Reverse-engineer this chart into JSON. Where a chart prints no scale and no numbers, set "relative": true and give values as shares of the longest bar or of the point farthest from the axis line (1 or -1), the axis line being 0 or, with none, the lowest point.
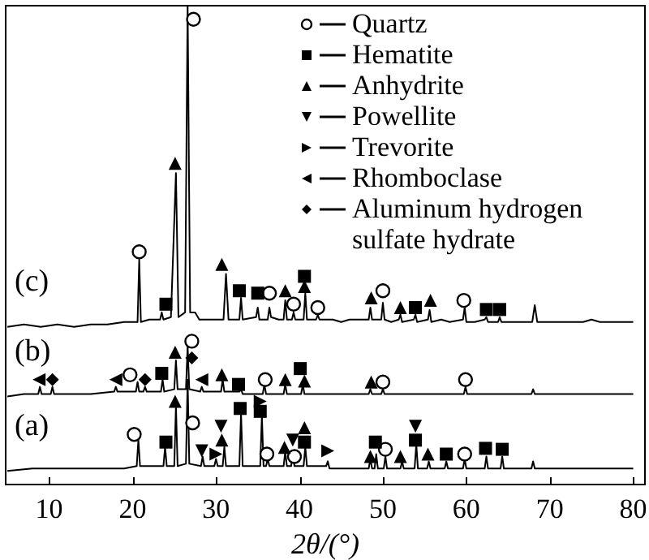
{
  "chart_data": {
    "type": "line",
    "relative": true,
    "xlabel": "2θ/(°)",
    "xlim": [
      4.7,
      81.5
    ],
    "xticks": [
      10,
      20,
      30,
      40,
      50,
      60,
      70,
      80
    ],
    "legend": "top right",
    "line_style": "solid",
    "annotations": [
      "(c)",
      "(b)",
      "(a)"
    ],
    "series": [
      {
        "color": "#000000",
        "x": [
          5,
          7,
          9,
          11,
          13,
          15,
          17,
          19,
          20.6,
          20.8,
          21,
          22,
          23.3,
          23.5,
          23.7,
          24.6,
          25.2,
          25.5,
          26.3,
          26.6,
          26.9,
          27.5,
          28,
          29,
          30.9,
          31.2,
          31.5,
          32.8,
          33,
          33.2,
          34.8,
          35,
          35.2,
          36.2,
          36.4,
          36.6,
          37.5,
          38.1,
          38.3,
          38.5,
          39.1,
          39.3,
          39.5,
          40.5,
          40.7,
          40.9,
          42,
          42.2,
          42.4,
          44,
          45,
          46,
          48.3,
          48.5,
          48.7,
          49.8,
          50,
          50.2,
          51,
          51.9,
          52.1,
          52.3,
          53.7,
          53.9,
          54.1,
          55.4,
          55.6,
          55.8,
          57,
          58,
          59.6,
          59.8,
          60,
          61,
          62.2,
          62.4,
          62.6,
          63.8,
          64,
          64.2,
          66,
          67.9,
          68.2,
          68.5,
          70,
          72,
          74,
          75,
          76,
          78,
          80
        ],
        "values": [
          0.33,
          0.335,
          0.33,
          0.335,
          0.33,
          0.335,
          0.335,
          0.34,
          0.34,
          0.47,
          0.34,
          0.345,
          0.345,
          0.36,
          0.345,
          0.35,
          0.65,
          0.35,
          0.36,
          1.0,
          0.36,
          0.36,
          0.345,
          0.345,
          0.345,
          0.44,
          0.345,
          0.345,
          0.39,
          0.345,
          0.35,
          0.37,
          0.345,
          0.345,
          0.37,
          0.35,
          0.345,
          0.345,
          0.385,
          0.345,
          0.345,
          0.36,
          0.345,
          0.345,
          0.4,
          0.345,
          0.345,
          0.355,
          0.345,
          0.345,
          0.34,
          0.345,
          0.345,
          0.37,
          0.345,
          0.345,
          0.38,
          0.345,
          0.34,
          0.345,
          0.355,
          0.34,
          0.345,
          0.355,
          0.34,
          0.345,
          0.365,
          0.34,
          0.345,
          0.34,
          0.345,
          0.37,
          0.34,
          0.34,
          0.345,
          0.35,
          0.34,
          0.34,
          0.35,
          0.34,
          0.34,
          0.34,
          0.375,
          0.34,
          0.34,
          0.34,
          0.34,
          0.345,
          0.34,
          0.34,
          0.34
        ]
      },
      {
        "color": "#000000",
        "x": [
          5,
          7,
          8.7,
          8.9,
          9.1,
          10.2,
          10.4,
          10.6,
          13,
          15,
          17.8,
          18,
          18.2,
          20.4,
          20.6,
          20.8,
          21.3,
          21.5,
          21.7,
          23.4,
          23.6,
          23.8,
          25,
          25.2,
          25.4,
          26.4,
          26.6,
          26.8,
          28.1,
          28.3,
          28.5,
          30.6,
          30.8,
          31,
          32.8,
          33,
          33.2,
          35.6,
          35.8,
          36,
          38.1,
          38.3,
          38.5,
          40.2,
          40.4,
          40.6,
          44,
          48.3,
          48.5,
          48.7,
          49.8,
          50,
          50.2,
          55,
          59.7,
          59.9,
          60.1,
          65,
          67.8,
          68,
          68.2,
          72,
          76,
          80
        ],
        "values": [
          0.185,
          0.19,
          0.19,
          0.205,
          0.19,
          0.19,
          0.205,
          0.19,
          0.19,
          0.19,
          0.195,
          0.205,
          0.195,
          0.195,
          0.215,
          0.195,
          0.195,
          0.205,
          0.195,
          0.195,
          0.22,
          0.195,
          0.2,
          0.26,
          0.2,
          0.2,
          0.29,
          0.2,
          0.195,
          0.205,
          0.195,
          0.195,
          0.22,
          0.195,
          0.195,
          0.2,
          0.19,
          0.19,
          0.21,
          0.19,
          0.19,
          0.21,
          0.19,
          0.19,
          0.21,
          0.19,
          0.19,
          0.19,
          0.2,
          0.19,
          0.19,
          0.2,
          0.19,
          0.19,
          0.19,
          0.205,
          0.19,
          0.19,
          0.19,
          0.2,
          0.19,
          0.19,
          0.19,
          0.19
        ]
      },
      {
        "color": "#000000",
        "x": [
          5,
          8,
          11,
          14,
          17,
          19,
          20.5,
          20.7,
          20.9,
          22,
          23.7,
          23.9,
          24.1,
          25,
          25.2,
          25.4,
          26.4,
          26.6,
          26.8,
          28.2,
          28.4,
          28.6,
          29.8,
          30,
          30.2,
          30.8,
          31,
          31.2,
          32.8,
          33,
          33.2,
          35.3,
          35.5,
          35.7,
          36,
          36.2,
          36.4,
          38.1,
          38.3,
          38.5,
          39,
          39.2,
          39.4,
          40.5,
          40.7,
          40.9,
          43.2,
          43.4,
          43.6,
          46,
          48.3,
          48.5,
          48.7,
          49,
          49.2,
          49.4,
          50.1,
          50.3,
          50.5,
          52.1,
          52.3,
          52.5,
          53.8,
          54,
          54.2,
          55.3,
          55.5,
          55.7,
          57.4,
          57.6,
          57.8,
          59.6,
          59.8,
          60,
          62.2,
          62.4,
          62.6,
          64.1,
          64.3,
          64.5,
          66,
          67.8,
          68,
          68.2,
          72,
          76,
          80
        ],
        "values": [
          0.03,
          0.035,
          0.035,
          0.035,
          0.035,
          0.035,
          0.04,
          0.095,
          0.04,
          0.04,
          0.04,
          0.08,
          0.04,
          0.04,
          0.165,
          0.04,
          0.045,
          0.22,
          0.045,
          0.04,
          0.06,
          0.04,
          0.04,
          0.055,
          0.04,
          0.04,
          0.08,
          0.04,
          0.04,
          0.15,
          0.04,
          0.04,
          0.145,
          0.04,
          0.04,
          0.055,
          0.04,
          0.04,
          0.07,
          0.04,
          0.04,
          0.065,
          0.04,
          0.04,
          0.08,
          0.04,
          0.04,
          0.05,
          0.035,
          0.035,
          0.035,
          0.055,
          0.035,
          0.035,
          0.065,
          0.035,
          0.035,
          0.06,
          0.035,
          0.035,
          0.05,
          0.035,
          0.035,
          0.085,
          0.035,
          0.035,
          0.05,
          0.035,
          0.035,
          0.05,
          0.035,
          0.035,
          0.055,
          0.035,
          0.035,
          0.06,
          0.035,
          0.035,
          0.06,
          0.035,
          0.035,
          0.035,
          0.05,
          0.035,
          0.035,
          0.035,
          0.035
        ]
      },
      {
        "type": "scatter",
        "name": "Quartz",
        "marker": "circle",
        "color": "#000000",
        "x": [
          20.8,
          27.3,
          36.4,
          39.3,
          42.2,
          50.0,
          59.7,
          19.7,
          27.1,
          35.9,
          50.0,
          59.9,
          20.2,
          27.2,
          36.1,
          39.4,
          50.3,
          59.8
        ],
        "values": [
          0.486,
          0.97,
          0.4,
          0.377,
          0.37,
          0.405,
          0.385,
          0.23,
          0.3,
          0.22,
          0.215,
          0.22,
          0.106,
          0.13,
          0.065,
          0.06,
          0.075,
          0.065
        ]
      },
      {
        "type": "scatter",
        "name": "Hematite",
        "marker": "square",
        "color": "#000000",
        "x": [
          24.0,
          32.8,
          35.0,
          40.6,
          53.9,
          62.4,
          64.0,
          23.5,
          32.7,
          40.1,
          24.0,
          32.9,
          35.3,
          40.6,
          49.1,
          53.9,
          57.6,
          62.3,
          64.3
        ],
        "values": [
          0.377,
          0.405,
          0.4,
          0.435,
          0.37,
          0.366,
          0.366,
          0.233,
          0.21,
          0.243,
          0.09,
          0.16,
          0.154,
          0.09,
          0.09,
          0.094,
          0.065,
          0.077,
          0.075
        ]
      },
      {
        "type": "scatter",
        "name": "Anhydrite",
        "marker": "triangle",
        "color": "#000000",
        "x": [
          25.1,
          30.7,
          38.3,
          40.6,
          48.6,
          52.1,
          55.7,
          25.1,
          30.7,
          38.3,
          40.6,
          48.6,
          25.1,
          30.7,
          38.2,
          40.6,
          48.5,
          52.1,
          55.4
        ],
        "values": [
          0.67,
          0.46,
          0.405,
          0.414,
          0.39,
          0.37,
          0.385,
          0.277,
          0.23,
          0.22,
          0.217,
          0.215,
          0.175,
          0.094,
          0.079,
          0.12,
          0.06,
          0.06,
          0.065
        ]
      },
      {
        "type": "scatter",
        "name": "Powellite",
        "marker": "triangle-down",
        "color": "#000000",
        "x": [
          28.3,
          30.6,
          39.2,
          53.9
        ],
        "values": [
          0.072,
          0.123,
          0.094,
          0.123
        ]
      },
      {
        "type": "scatter",
        "name": "Trevorite",
        "marker": "triangle-right",
        "color": "#000000",
        "x": [
          30.0,
          35.3,
          43.4
        ],
        "values": [
          0.065,
          0.175,
          0.072
        ]
      },
      {
        "type": "scatter",
        "name": "Rhomboclase",
        "marker": "triangle-left",
        "color": "#000000",
        "x": [
          8.8,
          18.0,
          28.3
        ],
        "values": [
          0.22,
          0.22,
          0.22
        ]
      },
      {
        "type": "scatter",
        "name": "Aluminum hydrogen sulfate hydrate",
        "marker": "diamond",
        "color": "#000000",
        "x": [
          10.4,
          21.5,
          27.1
        ],
        "values": [
          0.22,
          0.22,
          0.265
        ]
      }
    ]
  }
}
